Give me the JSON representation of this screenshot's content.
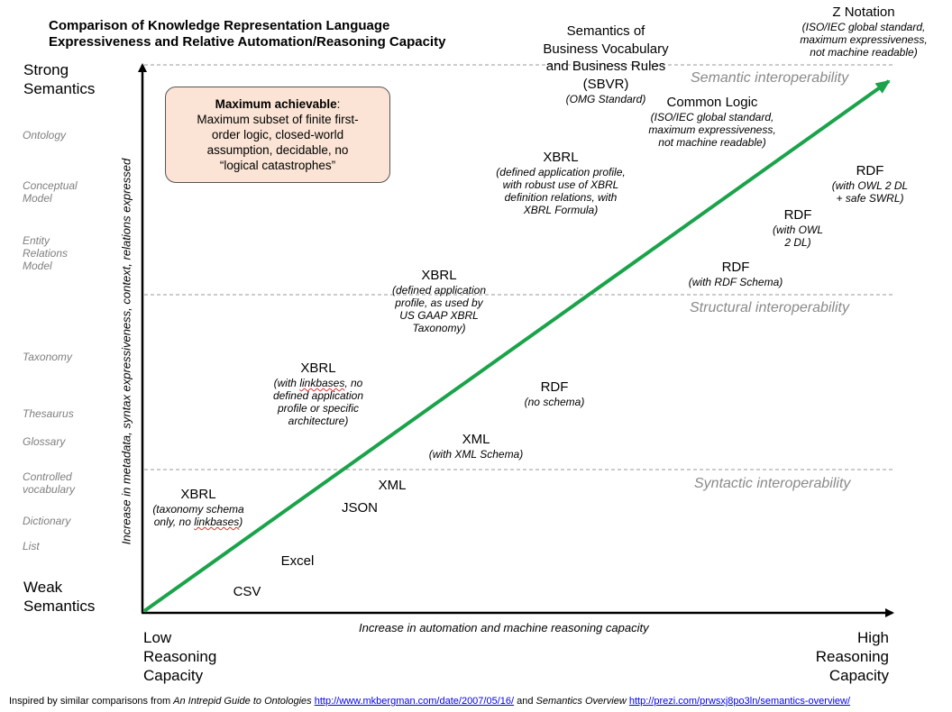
{
  "title": "Comparison of Knowledge Representation Language\nExpressiveness and Relative Automation/Reasoning Capacity",
  "y_axis": {
    "top_label": "Strong\nSemantics",
    "bottom_label": "Weak\nSemantics",
    "label": "Increase in metadata, syntax expressiveness, context, relations expressed",
    "levels": [
      "Ontology",
      "Conceptual\nModel",
      "Entity\nRelations\nModel",
      "Taxonomy",
      "Thesaurus",
      "Glossary",
      "Controlled\nvocabulary",
      "Dictionary",
      "List"
    ]
  },
  "x_axis": {
    "left_label": "Low\nReasoning\nCapacity",
    "right_label": "High\nReasoning\nCapacity",
    "label": "Increase in automation and machine reasoning capacity"
  },
  "zones": [
    "Semantic interoperability",
    "Structural interoperability",
    "Syntactic interoperability"
  ],
  "callout": {
    "title": "Maximum achievable",
    "suffix": ":",
    "body": "Maximum subset of finite first-\norder logic, closed-world\nassumption, decidable, no\n“logical catastrophes”"
  },
  "nodes": {
    "z_notation": {
      "name": "Z Notation",
      "note": "(ISO/IEC global standard,\nmaximum expressiveness,\nnot machine readable)"
    },
    "sbvr": {
      "name": "Semantics of\nBusiness Vocabulary\nand Business Rules\n(SBVR)",
      "note": "(OMG Standard)"
    },
    "common_logic": {
      "name": "Common Logic",
      "note": "(ISO/IEC global standard,\nmaximum expressiveness,\nnot machine readable)"
    },
    "xbrl_formula": {
      "name": "XBRL",
      "note": "(defined application profile,\nwith robust use of XBRL\ndefinition relations, with\nXBRL Formula)"
    },
    "rdf_owl2dl_swrl": {
      "name": "RDF",
      "note": "(with OWL 2 DL\n+ safe SWRL)"
    },
    "rdf_owl2dl": {
      "name": "RDF",
      "note": "(with OWL\n2 DL)"
    },
    "rdf_schema": {
      "name": "RDF",
      "note": "(with RDF Schema)"
    },
    "xbrl_usgaap": {
      "name": "XBRL",
      "note": "(defined application\nprofile,  as used by\nUS GAAP XBRL\nTaxonomy)"
    },
    "xbrl_linkbases": {
      "name": "XBRL",
      "note_pre": "(with ",
      "note_wavy": "linkbases",
      "note_post": ", no\ndefined application\nprofile or specific\narchitecture)"
    },
    "rdf_noschema": {
      "name": "RDF",
      "note": "(no schema)"
    },
    "xml_schema": {
      "name": "XML",
      "note": "(with XML Schema)"
    },
    "xml": {
      "name": "XML"
    },
    "json": {
      "name": "JSON"
    },
    "xbrl_taxonomy": {
      "name": "XBRL",
      "note_pre": "(taxonomy schema\nonly, no ",
      "note_wavy": "linkbases",
      "note_post": ")"
    },
    "excel": {
      "name": "Excel"
    },
    "csv": {
      "name": "CSV"
    }
  },
  "footer": {
    "prefix": "Inspired by similar comparisons from ",
    "source1_title": "An Intrepid Guide to Ontologies",
    "source1_url": "http://www.mkbergman.com/date/2007/05/16/",
    "mid": " and ",
    "source2_title": "Semantics Overview",
    "source2_url": "http://prezi.com/prwsxj8po3ln/semantics-overview/"
  },
  "colors": {
    "arrow": "#1aa34a",
    "callout_fill": "#fbe4d5",
    "zone_text": "#8a8a8a",
    "level_text": "#7f7f7f"
  }
}
